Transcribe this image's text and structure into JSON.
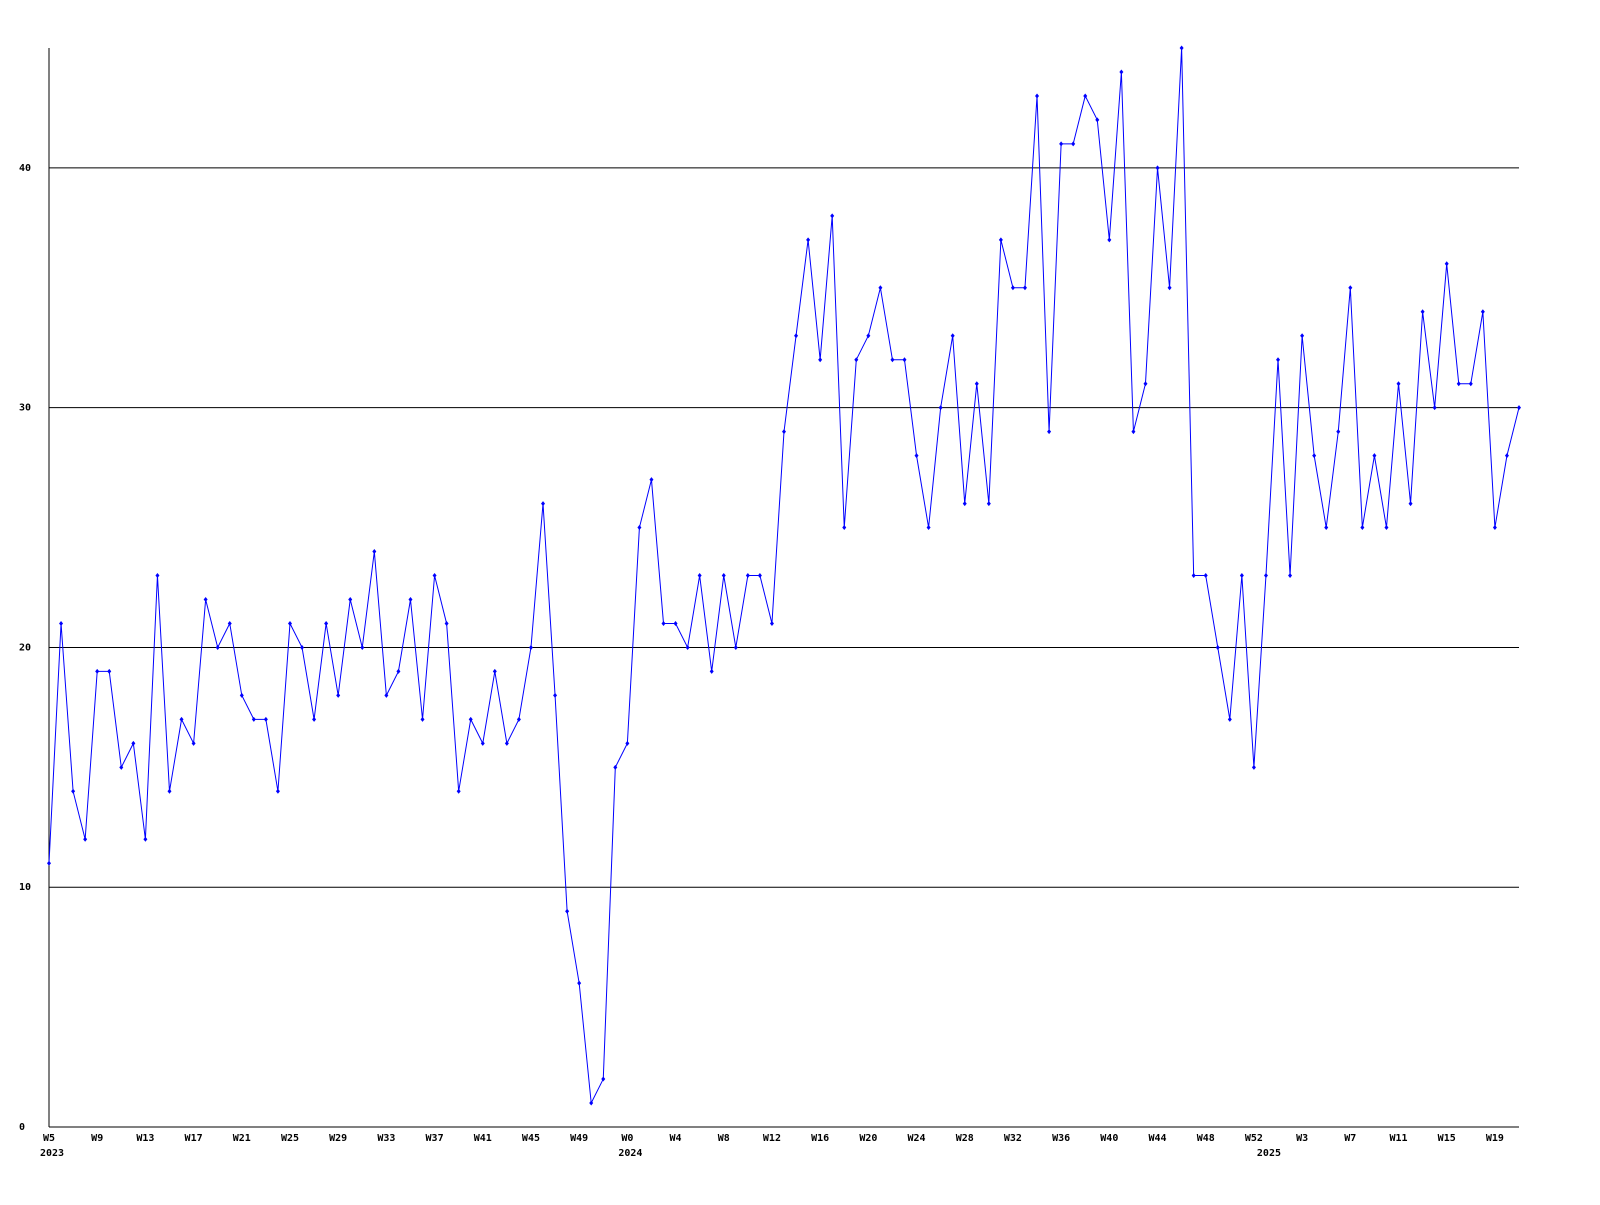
{
  "chart_data": {
    "type": "line",
    "categories": [
      "W5",
      null,
      null,
      null,
      "W9",
      null,
      null,
      null,
      "W13",
      null,
      null,
      null,
      "W17",
      null,
      null,
      null,
      "W21",
      null,
      null,
      null,
      "W25",
      null,
      null,
      null,
      "W29",
      null,
      null,
      null,
      "W33",
      null,
      null,
      null,
      "W37",
      null,
      null,
      null,
      "W41",
      null,
      null,
      null,
      "W45",
      null,
      null,
      null,
      "W49",
      null,
      null,
      null,
      "W0",
      null,
      null,
      null,
      "W4",
      null,
      null,
      null,
      "W8",
      null,
      null,
      null,
      "W12",
      null,
      null,
      null,
      "W16",
      null,
      null,
      null,
      "W20",
      null,
      null,
      null,
      "W24",
      null,
      null,
      null,
      "W28",
      null,
      null,
      null,
      "W32",
      null,
      null,
      null,
      "W36",
      null,
      null,
      null,
      "W40",
      null,
      null,
      null,
      "W44",
      null,
      null,
      null,
      "W48",
      null,
      null,
      null,
      "W52",
      null,
      null,
      null,
      "W3",
      null,
      null,
      null,
      "W7",
      null,
      null,
      null,
      "W11",
      null,
      null,
      null,
      "W15",
      null,
      null,
      null,
      "W19",
      null,
      null
    ],
    "x_group_labels": [
      {
        "index": 0,
        "label": "2023"
      },
      {
        "index": 48,
        "label": "2024"
      },
      {
        "index": 101,
        "label": "2025"
      }
    ],
    "series": [
      {
        "color": "#0000ff",
        "values": [
          11,
          21,
          14,
          12,
          19,
          19,
          15,
          16,
          12,
          23,
          14,
          17,
          16,
          22,
          20,
          21,
          18,
          17,
          17,
          14,
          21,
          20,
          17,
          21,
          18,
          22,
          20,
          24,
          18,
          19,
          22,
          17,
          23,
          21,
          14,
          17,
          16,
          19,
          16,
          17,
          20,
          26,
          18,
          9,
          6,
          1,
          2,
          15,
          16,
          25,
          27,
          21,
          21,
          20,
          23,
          19,
          23,
          20,
          23,
          23,
          21,
          29,
          33,
          37,
          32,
          38,
          25,
          32,
          33,
          35,
          32,
          32,
          28,
          25,
          30,
          33,
          26,
          31,
          26,
          37,
          35,
          35,
          43,
          29,
          41,
          41,
          43,
          42,
          37,
          44,
          29,
          31,
          40,
          35,
          45,
          23,
          23,
          20,
          17,
          23,
          15,
          23,
          32,
          23,
          33,
          28,
          25,
          29,
          35,
          25,
          28,
          25,
          31,
          26,
          34,
          30,
          36,
          31,
          31,
          34,
          25,
          28,
          30
        ]
      }
    ],
    "ylim": [
      0,
      45
    ],
    "yticks": [
      0,
      10,
      20,
      30,
      40
    ],
    "grid": true
  }
}
